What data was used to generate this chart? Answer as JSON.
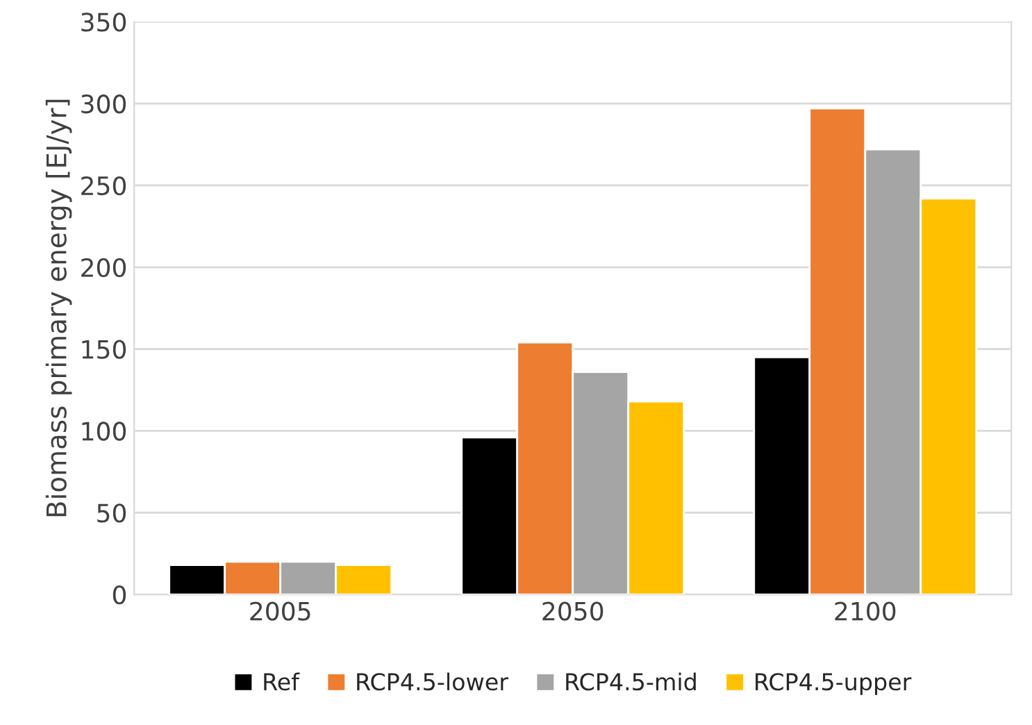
{
  "chart_data": {
    "type": "bar",
    "ylabel": "Biomass primary energy [EJ/yr]",
    "categories": [
      "2005",
      "2050",
      "2100"
    ],
    "series": [
      {
        "name": "Ref",
        "color": "#000000",
        "values": [
          18,
          96,
          145
        ]
      },
      {
        "name": "RCP4.5-lower",
        "color": "#ed7d31",
        "values": [
          20,
          154,
          297
        ]
      },
      {
        "name": "RCP4.5-mid",
        "color": "#a5a5a5",
        "values": [
          20,
          136,
          272
        ]
      },
      {
        "name": "RCP4.5-upper",
        "color": "#ffc000",
        "values": [
          18,
          118,
          242
        ]
      }
    ],
    "ylim": [
      0,
      350
    ],
    "yticks": [
      0,
      50,
      100,
      150,
      200,
      250,
      300,
      350
    ],
    "grid": "y",
    "legend": "bottom"
  }
}
